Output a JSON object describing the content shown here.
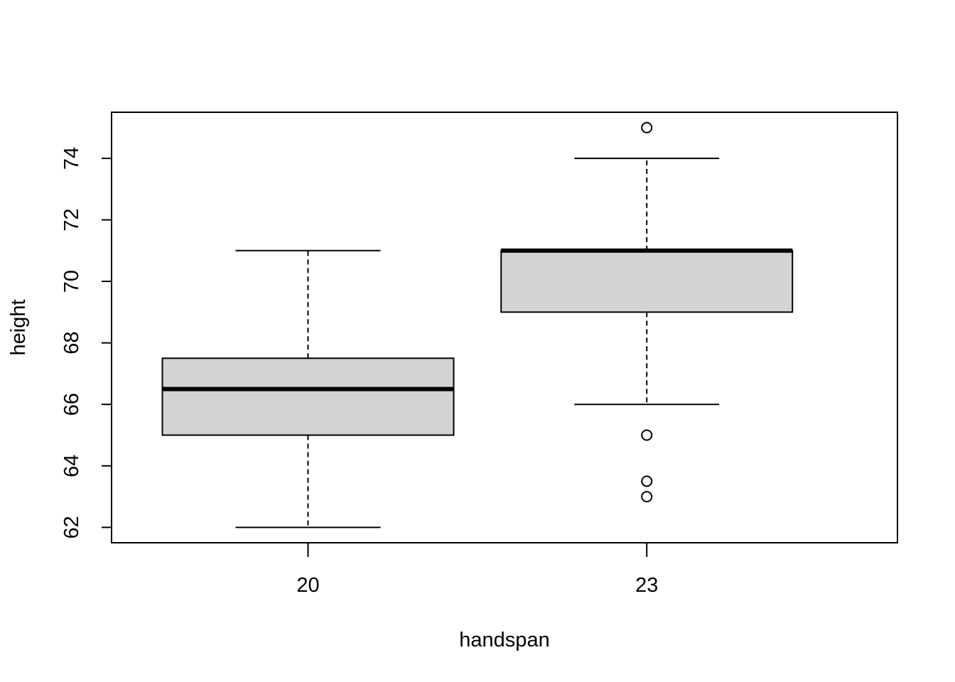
{
  "chart_data": {
    "type": "boxplot",
    "title": "",
    "xlabel": "handspan",
    "ylabel": "height",
    "ylim": [
      61.5,
      75.5
    ],
    "yticks": [
      62,
      64,
      66,
      68,
      70,
      72,
      74
    ],
    "ytick_labels": [
      "62",
      "64",
      "66",
      "68",
      "70",
      "72",
      "74"
    ],
    "categories": [
      "20",
      "23"
    ],
    "boxes": [
      {
        "category": "20",
        "whisker_low": 62,
        "q1": 65,
        "median": 66.5,
        "q3": 67.5,
        "whisker_high": 71,
        "outliers": []
      },
      {
        "category": "23",
        "whisker_low": 66,
        "q1": 69,
        "median": 71,
        "q3": 71,
        "whisker_high": 74,
        "outliers": [
          75,
          65,
          63.5,
          63
        ]
      }
    ],
    "box_fill": "#d3d3d3",
    "grid": false,
    "legend": "none"
  }
}
